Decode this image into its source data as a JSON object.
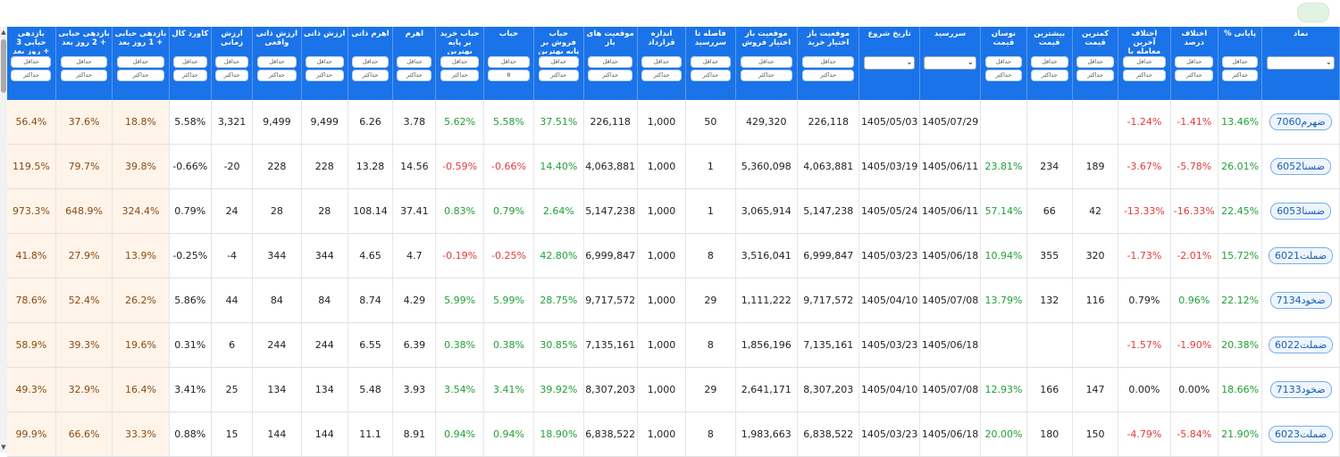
{
  "headers": [
    "بازدهی حبابی 3 روز بعد +",
    "بازدهی حبابی 2 روز بعد +",
    "بازدهی حبابی 1 روز بعد +",
    "کاورد کال",
    "ارزش زمانی",
    "ارزش ذاتی واقعی",
    "ارزش ذاتی",
    "اهرم ذاتی",
    "اهرم",
    "حباب خرید بر پایه بهترین عرضه",
    "حباب",
    "حباب فروش بر پایه بهترین تقاضا",
    "موقعیت های باز",
    "اندازه قرارداد",
    "فاصله تا سررسید",
    "موقعیت باز اختیار فروش",
    "موقعیت باز اختیار خرید",
    "تاریخ شروع",
    "سررسید",
    "نوسان قیمت",
    "بیشترین قیمت",
    "کمترین قیمت",
    "اختلاف آخرین معامله با پایانی",
    "اختلاف درصد",
    "% پایانی",
    "نماد"
  ],
  "filters": {
    "min": "حداقل",
    "max": "حداکثر",
    "bubble_value": "8"
  },
  "rows": [
    [
      "56.4%",
      "37.6%",
      "18.8%",
      "5.58%",
      "3,321",
      "9,499",
      "9,499",
      "6.26",
      "3.78",
      "5.62%",
      "5.58%",
      "37.51%",
      "226,118",
      "1,000",
      "50",
      "429,320",
      "226,118",
      "1405/05/03",
      "1405/07/29",
      "",
      "",
      "",
      "-1.24%",
      "-1.41%",
      "13.46%",
      "ضهرم7060"
    ],
    [
      "119.5%",
      "79.7%",
      "39.8%",
      "-0.66%",
      "-20",
      "228",
      "228",
      "13.28",
      "14.56",
      "-0.59%",
      "-0.66%",
      "14.40%",
      "4,063,881",
      "1,000",
      "1",
      "5,360,098",
      "4,063,881",
      "1405/03/19",
      "1405/06/11",
      "23.81%",
      "234",
      "189",
      "-3.67%",
      "-5.78%",
      "26.01%",
      "ضسنا6052"
    ],
    [
      "973.3%",
      "648.9%",
      "324.4%",
      "0.79%",
      "24",
      "28",
      "28",
      "108.14",
      "37.41",
      "0.83%",
      "0.79%",
      "2.64%",
      "5,147,238",
      "1,000",
      "1",
      "3,065,914",
      "5,147,238",
      "1405/05/24",
      "1405/06/11",
      "57.14%",
      "66",
      "42",
      "-13.33%",
      "-16.33%",
      "22.45%",
      "ضسنا6053"
    ],
    [
      "41.8%",
      "27.9%",
      "13.9%",
      "-0.25%",
      "-4",
      "344",
      "344",
      "4.65",
      "4.7",
      "-0.19%",
      "-0.25%",
      "42.80%",
      "6,999,847",
      "1,000",
      "8",
      "3,516,041",
      "6,999,847",
      "1405/03/23",
      "1405/06/18",
      "10.94%",
      "355",
      "320",
      "-1.73%",
      "-2.01%",
      "15.72%",
      "ضملت6021"
    ],
    [
      "78.6%",
      "52.4%",
      "26.2%",
      "5.86%",
      "44",
      "84",
      "84",
      "8.74",
      "4.29",
      "5.99%",
      "5.99%",
      "28.75%",
      "9,717,572",
      "1,000",
      "29",
      "1,111,222",
      "9,717,572",
      "1405/04/10",
      "1405/07/08",
      "13.79%",
      "132",
      "116",
      "0.79%",
      "0.96%",
      "22.12%",
      "ضخود7134"
    ],
    [
      "58.9%",
      "39.3%",
      "19.6%",
      "0.31%",
      "6",
      "244",
      "244",
      "6.55",
      "6.39",
      "0.38%",
      "0.38%",
      "30.85%",
      "7,135,161",
      "1,000",
      "8",
      "1,856,196",
      "7,135,161",
      "1405/03/23",
      "1405/06/18",
      "",
      "",
      "",
      "-1.57%",
      "-1.90%",
      "20.38%",
      "ضملت6022"
    ],
    [
      "49.3%",
      "32.9%",
      "16.4%",
      "3.41%",
      "25",
      "134",
      "134",
      "5.48",
      "3.93",
      "3.54%",
      "3.41%",
      "39.92%",
      "8,307,203",
      "1,000",
      "29",
      "2,641,171",
      "8,307,203",
      "1405/04/10",
      "1405/07/08",
      "12.93%",
      "166",
      "147",
      "0.00%",
      "0.00%",
      "18.66%",
      "ضخود7133"
    ],
    [
      "99.9%",
      "66.6%",
      "33.3%",
      "0.88%",
      "15",
      "144",
      "144",
      "11.1",
      "8.91",
      "0.94%",
      "0.94%",
      "18.90%",
      "6,838,522",
      "1,000",
      "8",
      "1,983,663",
      "6,838,522",
      "1405/03/23",
      "1405/06/18",
      "20.00%",
      "180",
      "150",
      "-4.79%",
      "-5.84%",
      "21.90%",
      "ضملت6023"
    ]
  ],
  "colors": {
    "header_bg": "#1a73e8",
    "positive": "#21a038",
    "negative": "#e23b3b",
    "return_bg": "#fff4e9"
  }
}
